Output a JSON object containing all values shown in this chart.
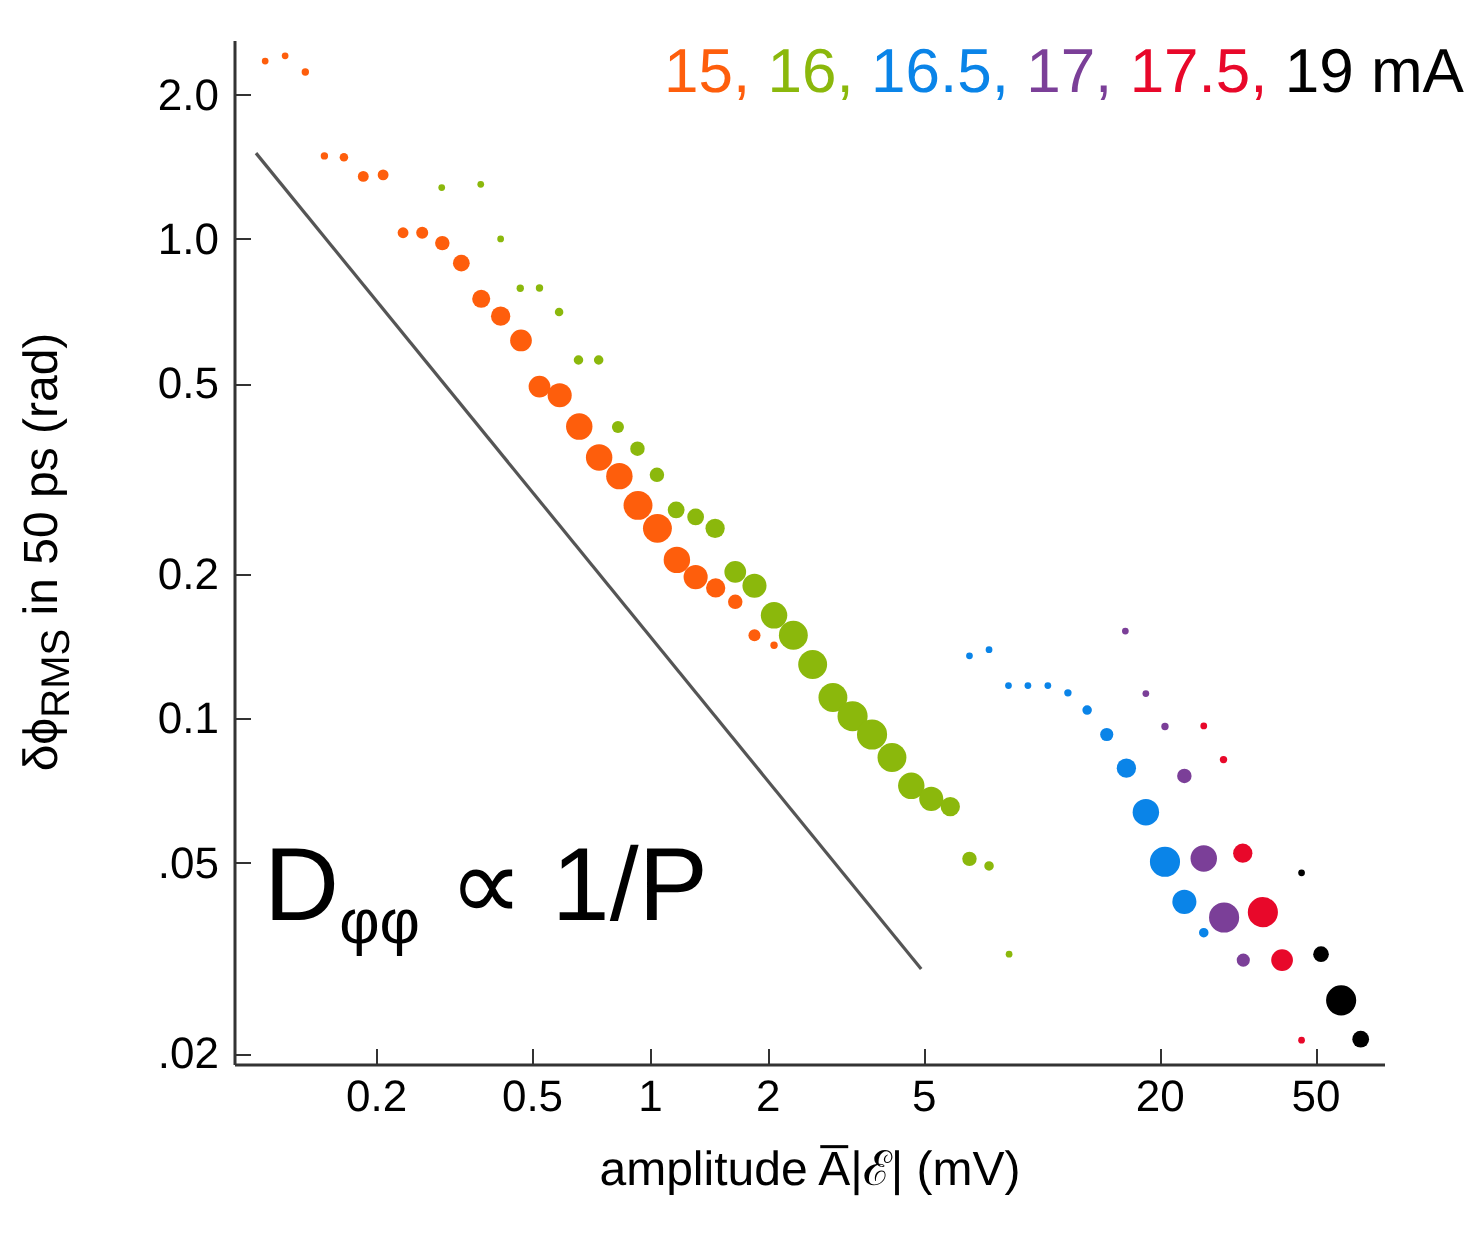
{
  "chart_data": {
    "type": "bubble",
    "xlabel": "amplitude A̅|ℰ| (mV)",
    "ylabel": "δϕ$_{RMS}$ in 50 ps (rad)",
    "legend_title": "mA",
    "legend": "top right",
    "marker": "circle",
    "log": "xy",
    "xlim": [
      0.087,
      75
    ],
    "ylim": [
      0.019,
      2.6
    ],
    "xticks": [
      0.2,
      0.5,
      1,
      2,
      5,
      20,
      50
    ],
    "yticks": [
      {
        "value": 0.02,
        "label": ".02"
      },
      {
        "value": 0.05,
        "label": ".05"
      },
      {
        "value": 0.1,
        "label": "0.1"
      },
      0.2,
      0.5,
      {
        "value": 1,
        "label": "1.0"
      },
      {
        "value": 2,
        "label": "2.0"
      }
    ],
    "annotations": [
      "D$_{φφ}$ ∝ 1/P"
    ],
    "series": [
      {
        "name": "15,",
        "color": "#fe5e0c",
        "x": [
          0.1045,
          0.1175,
          0.1323,
          0.148,
          0.166,
          0.186,
          0.209,
          0.235,
          0.263,
          0.296,
          0.331,
          0.372,
          0.417,
          0.47,
          0.524,
          0.59,
          0.662,
          0.744,
          0.838,
          0.935,
          1.048,
          1.175,
          1.312,
          1.476,
          1.656,
          1.854,
          2.08
        ],
        "values": [
          2.35,
          2.41,
          2.23,
          1.49,
          1.48,
          1.35,
          1.36,
          1.03,
          1.03,
          0.98,
          0.89,
          0.75,
          0.69,
          0.614,
          0.492,
          0.472,
          0.406,
          0.35,
          0.32,
          0.278,
          0.249,
          0.214,
          0.197,
          0.187,
          0.175,
          0.149,
          0.142
        ],
        "sizes": [
          0.05,
          0.05,
          0.06,
          0.06,
          0.08,
          0.13,
          0.13,
          0.13,
          0.16,
          0.23,
          0.31,
          0.36,
          0.41,
          0.52,
          0.52,
          0.64,
          0.77,
          0.77,
          0.77,
          0.92,
          0.92,
          0.77,
          0.64,
          0.41,
          0.23,
          0.16,
          0.06
        ]
      },
      {
        "name": "16,",
        "color": "#8bb80c",
        "x": [
          0.295,
          0.371,
          0.417,
          0.468,
          0.524,
          0.588,
          0.659,
          0.742,
          0.831,
          0.932,
          1.045,
          1.17,
          1.312,
          1.471,
          1.656,
          1.854,
          2.08,
          2.33,
          2.61,
          2.94,
          3.3,
          3.7,
          4.16,
          4.66,
          5.24,
          5.86,
          6.56,
          7.36,
          8.28
        ],
        "values": [
          1.28,
          1.3,
          1.0,
          0.789,
          0.79,
          0.704,
          0.559,
          0.559,
          0.405,
          0.365,
          0.322,
          0.272,
          0.263,
          0.249,
          0.202,
          0.189,
          0.164,
          0.149,
          0.1295,
          0.1105,
          0.101,
          0.0925,
          0.0828,
          0.0723,
          0.0679,
          0.0654,
          0.0509,
          0.0492,
          0.0322
        ],
        "sizes": [
          0.05,
          0.05,
          0.05,
          0.06,
          0.06,
          0.08,
          0.1,
          0.1,
          0.16,
          0.23,
          0.23,
          0.31,
          0.31,
          0.41,
          0.52,
          0.64,
          0.77,
          0.92,
          0.92,
          0.92,
          1,
          1,
          0.92,
          0.77,
          0.64,
          0.41,
          0.23,
          0.1,
          0.05
        ]
      },
      {
        "name": "16.5,",
        "color": "#0a84e8",
        "x": [
          6.56,
          7.36,
          8.25,
          9.25,
          10.4,
          11.7,
          13.1,
          14.7,
          16.5,
          18.5,
          20.7,
          23.2,
          26.0
        ],
        "values": [
          0.135,
          0.139,
          0.117,
          0.117,
          0.117,
          0.113,
          0.104,
          0.0925,
          0.0787,
          0.0637,
          0.0502,
          0.0414,
          0.0357
        ],
        "sizes": [
          0.05,
          0.05,
          0.05,
          0.05,
          0.05,
          0.06,
          0.1,
          0.19,
          0.41,
          0.77,
          1,
          0.64,
          0.1
        ]
      },
      {
        "name": "17,",
        "color": "#7b3f98",
        "x": [
          16.4,
          18.5,
          20.7,
          23.2,
          26.0,
          29.3,
          32.8
        ],
        "values": [
          0.152,
          0.1126,
          0.0961,
          0.0758,
          0.051,
          0.0384,
          0.0313
        ],
        "sizes": [
          0.05,
          0.05,
          0.06,
          0.23,
          0.77,
          1,
          0.19
        ]
      },
      {
        "name": "17.5,",
        "color": "#e8082a",
        "x": [
          26.0,
          29.2,
          32.7,
          36.8,
          41.2,
          46.2
        ],
        "values": [
          0.0964,
          0.082,
          0.0523,
          0.0394,
          0.0313,
          0.0213
        ],
        "sizes": [
          0.05,
          0.06,
          0.41,
          1,
          0.52,
          0.05
        ]
      },
      {
        "name": "19",
        "color": "#000000",
        "x": [
          46.2,
          51.8,
          58.3,
          65.4
        ],
        "values": [
          0.0476,
          0.0322,
          0.0258,
          0.0214
        ],
        "sizes": [
          0.05,
          0.27,
          1,
          0.31
        ]
      },
      {
        "type": "line",
        "marker": "none",
        "color": "#555555",
        "x": [
          0.099,
          4.94
        ],
        "values": [
          1.51,
          0.03
        ]
      }
    ]
  }
}
